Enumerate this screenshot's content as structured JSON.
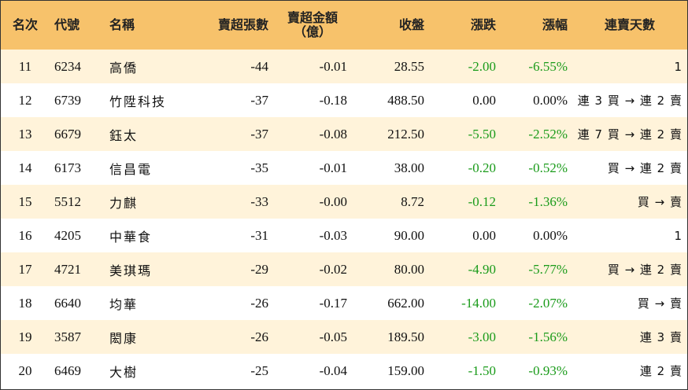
{
  "headers": {
    "rank": "名次",
    "code": "代號",
    "name": "名稱",
    "net_sell_lots": "賣超張數",
    "net_sell_amount_line1": "賣超金額",
    "net_sell_amount_line2": "（億）",
    "close": "收盤",
    "change": "漲跌",
    "change_pct": "漲幅",
    "streak": "連賣天數"
  },
  "colors": {
    "header_bg": "#f7c26b",
    "stripe_bg": "#fff3da",
    "down": "#1a9b1a"
  },
  "rows": [
    {
      "rank": "11",
      "code": "6234",
      "name": "高僑",
      "lots": "-44",
      "amount": "-0.01",
      "close": "28.55",
      "change": "-2.00",
      "pct": "-6.55%",
      "streak": "1",
      "neg": true
    },
    {
      "rank": "12",
      "code": "6739",
      "name": "竹陞科技",
      "lots": "-37",
      "amount": "-0.18",
      "close": "488.50",
      "change": "0.00",
      "pct": "0.00%",
      "streak": "連 3 買 → 連 2 賣",
      "neg": false
    },
    {
      "rank": "13",
      "code": "6679",
      "name": "鈺太",
      "lots": "-37",
      "amount": "-0.08",
      "close": "212.50",
      "change": "-5.50",
      "pct": "-2.52%",
      "streak": "連 7 買 → 連 2 賣",
      "neg": true
    },
    {
      "rank": "14",
      "code": "6173",
      "name": "信昌電",
      "lots": "-35",
      "amount": "-0.01",
      "close": "38.00",
      "change": "-0.20",
      "pct": "-0.52%",
      "streak": "買 → 連 2 賣",
      "neg": true
    },
    {
      "rank": "15",
      "code": "5512",
      "name": "力麒",
      "lots": "-33",
      "amount": "-0.00",
      "close": "8.72",
      "change": "-0.12",
      "pct": "-1.36%",
      "streak": "買 → 賣",
      "neg": true
    },
    {
      "rank": "16",
      "code": "4205",
      "name": "中華食",
      "lots": "-31",
      "amount": "-0.03",
      "close": "90.00",
      "change": "0.00",
      "pct": "0.00%",
      "streak": "1",
      "neg": false
    },
    {
      "rank": "17",
      "code": "4721",
      "name": "美琪瑪",
      "lots": "-29",
      "amount": "-0.02",
      "close": "80.00",
      "change": "-4.90",
      "pct": "-5.77%",
      "streak": "買 → 連 2 賣",
      "neg": true
    },
    {
      "rank": "18",
      "code": "6640",
      "name": "均華",
      "lots": "-26",
      "amount": "-0.17",
      "close": "662.00",
      "change": "-14.00",
      "pct": "-2.07%",
      "streak": "買 → 賣",
      "neg": true
    },
    {
      "rank": "19",
      "code": "3587",
      "name": "閎康",
      "lots": "-26",
      "amount": "-0.05",
      "close": "189.50",
      "change": "-3.00",
      "pct": "-1.56%",
      "streak": "連 3 賣",
      "neg": true
    },
    {
      "rank": "20",
      "code": "6469",
      "name": "大樹",
      "lots": "-25",
      "amount": "-0.04",
      "close": "159.00",
      "change": "-1.50",
      "pct": "-0.93%",
      "streak": "連 2 賣",
      "neg": true
    }
  ]
}
